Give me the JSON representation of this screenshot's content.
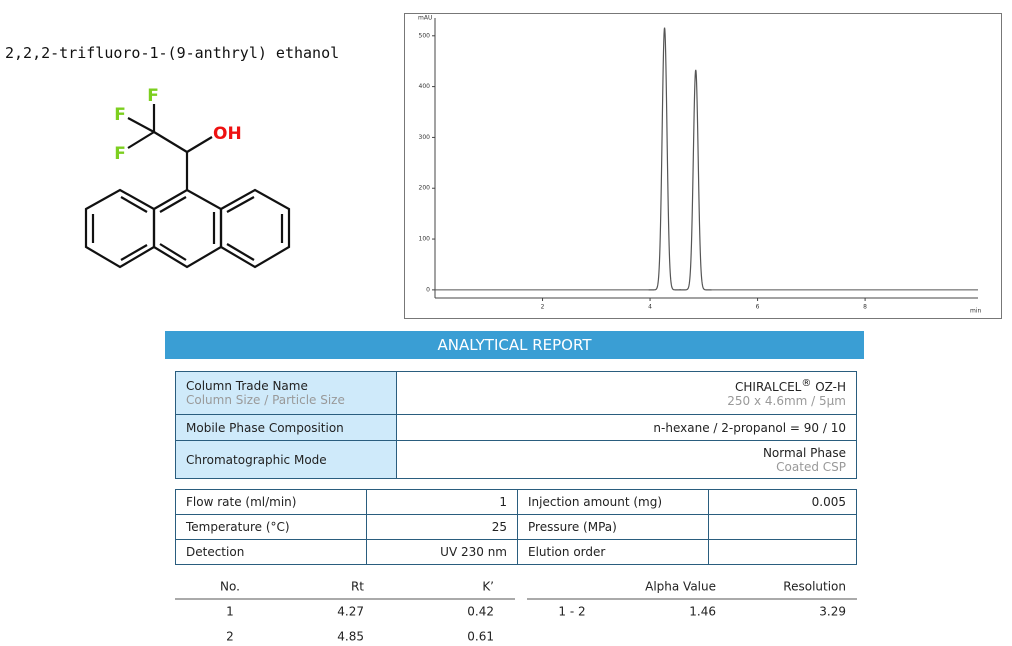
{
  "title": "2,2,2-trifluoro-1-(9-anthryl) ethanol",
  "structure": {
    "labels": [
      "F",
      "F",
      "F",
      "OH"
    ]
  },
  "chromatogram": {
    "y_label": "mAU",
    "x_label": "min",
    "xlim": [
      0,
      10.1
    ],
    "ylim": [
      -16,
      535
    ],
    "xticks": [
      2,
      4,
      6,
      8
    ],
    "yticks": [
      0,
      100,
      200,
      300,
      400,
      500
    ],
    "peaks": [
      {
        "rt": 4.27,
        "height": 516
      },
      {
        "rt": 4.85,
        "height": 433
      }
    ],
    "color": "#555555"
  },
  "report": {
    "heading": "ANALYTICAL REPORT",
    "column": {
      "label": "Column Trade Name",
      "sublabel": "Column Size / Particle Size",
      "name": "CHIRALCEL",
      "mark": "®",
      "model": "OZ-H",
      "size": "250 x 4.6mm / 5µm"
    },
    "mobile": {
      "label": "Mobile Phase Composition",
      "value": "n-hexane / 2-propanol = 90 / 10"
    },
    "mode": {
      "label": "Chromatographic Mode",
      "value": "Normal Phase",
      "subvalue": "Coated CSP"
    },
    "conditions": [
      {
        "left_label": "Flow rate (ml/min)",
        "left_value": "1",
        "right_label": "Injection amount (mg)",
        "right_value": "0.005"
      },
      {
        "left_label": "Temperature (°C)",
        "left_value": "25",
        "right_label": "Pressure (MPa)"
      },
      {
        "left_label": "Detection",
        "left_value": "UV 230 nm",
        "right_label": "Elution order"
      }
    ],
    "results": {
      "headers_left": [
        "No.",
        "Rt",
        "K’"
      ],
      "rows_left": [
        [
          "1",
          "4.27",
          "0.42"
        ],
        [
          "2",
          "4.85",
          "0.61"
        ]
      ],
      "headers_right": [
        "Alpha Value",
        "Resolution"
      ],
      "rows_right": [
        [
          "1 - 2",
          "1.46",
          "3.29"
        ]
      ]
    }
  }
}
